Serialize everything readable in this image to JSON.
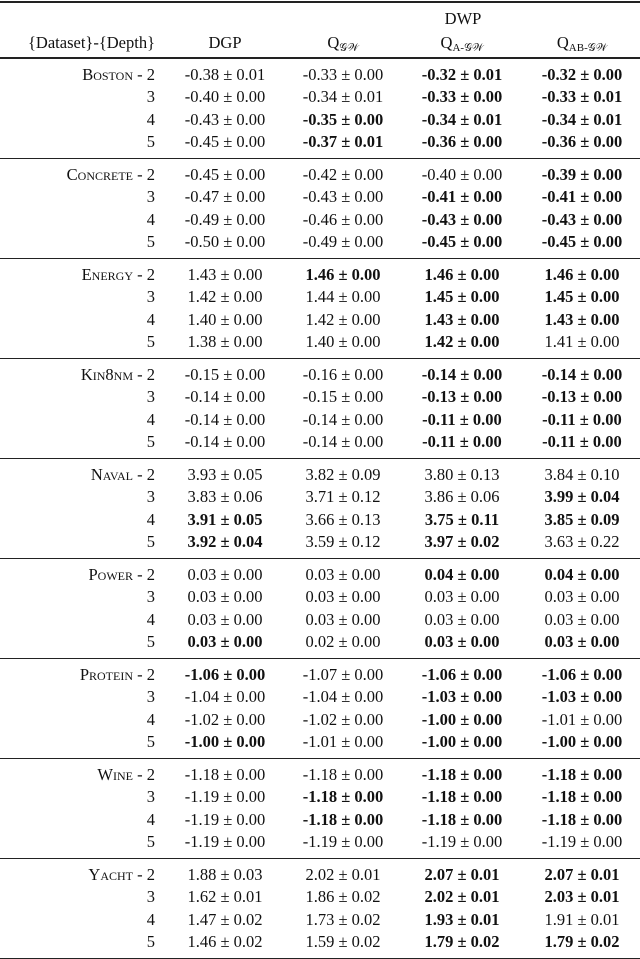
{
  "header": {
    "group_label": "DWP",
    "columns": [
      {
        "label": "{Dataset}-{Depth}"
      },
      {
        "label": "DGP"
      },
      {
        "label": "Q",
        "sub": "𝒢𝒲"
      },
      {
        "label": "Q",
        "sub": "A-𝒢𝒲"
      },
      {
        "label": "Q",
        "sub": "AB-𝒢𝒲"
      }
    ]
  },
  "separator": " - ",
  "groups": [
    {
      "name": "Boston",
      "rows": [
        {
          "depth": "2",
          "cells": [
            "-0.38 ± 0.01",
            "-0.33 ± 0.00",
            "-0.32 ± 0.01",
            "-0.32 ± 0.00"
          ],
          "bold": [
            0,
            0,
            1,
            1
          ]
        },
        {
          "depth": "3",
          "cells": [
            "-0.40 ± 0.00",
            "-0.34 ± 0.01",
            "-0.33 ± 0.00",
            "-0.33 ± 0.01"
          ],
          "bold": [
            0,
            0,
            1,
            1
          ]
        },
        {
          "depth": "4",
          "cells": [
            "-0.43 ± 0.00",
            "-0.35 ± 0.00",
            "-0.34 ± 0.01",
            "-0.34 ± 0.01"
          ],
          "bold": [
            0,
            1,
            1,
            1
          ]
        },
        {
          "depth": "5",
          "cells": [
            "-0.45 ± 0.00",
            "-0.37 ± 0.01",
            "-0.36 ± 0.00",
            "-0.36 ± 0.00"
          ],
          "bold": [
            0,
            1,
            1,
            1
          ]
        }
      ]
    },
    {
      "name": "Concrete",
      "rows": [
        {
          "depth": "2",
          "cells": [
            "-0.45 ± 0.00",
            "-0.42 ± 0.00",
            "-0.40 ± 0.00",
            "-0.39 ± 0.00"
          ],
          "bold": [
            0,
            0,
            0,
            1
          ]
        },
        {
          "depth": "3",
          "cells": [
            "-0.47 ± 0.00",
            "-0.43 ± 0.00",
            "-0.41 ± 0.00",
            "-0.41 ± 0.00"
          ],
          "bold": [
            0,
            0,
            1,
            1
          ]
        },
        {
          "depth": "4",
          "cells": [
            "-0.49 ± 0.00",
            "-0.46 ± 0.00",
            "-0.43 ± 0.00",
            "-0.43 ± 0.00"
          ],
          "bold": [
            0,
            0,
            1,
            1
          ]
        },
        {
          "depth": "5",
          "cells": [
            "-0.50 ± 0.00",
            "-0.49 ± 0.00",
            "-0.45 ± 0.00",
            "-0.45 ± 0.00"
          ],
          "bold": [
            0,
            0,
            1,
            1
          ]
        }
      ]
    },
    {
      "name": "Energy",
      "rows": [
        {
          "depth": "2",
          "cells": [
            "1.43 ± 0.00",
            "1.46 ± 0.00",
            "1.46 ± 0.00",
            "1.46 ± 0.00"
          ],
          "bold": [
            0,
            1,
            1,
            1
          ]
        },
        {
          "depth": "3",
          "cells": [
            "1.42 ± 0.00",
            "1.44 ± 0.00",
            "1.45 ± 0.00",
            "1.45 ± 0.00"
          ],
          "bold": [
            0,
            0,
            1,
            1
          ]
        },
        {
          "depth": "4",
          "cells": [
            "1.40 ± 0.00",
            "1.42 ± 0.00",
            "1.43 ± 0.00",
            "1.43 ± 0.00"
          ],
          "bold": [
            0,
            0,
            1,
            1
          ]
        },
        {
          "depth": "5",
          "cells": [
            "1.38 ± 0.00",
            "1.40 ± 0.00",
            "1.42 ± 0.00",
            "1.41 ± 0.00"
          ],
          "bold": [
            0,
            0,
            1,
            0
          ]
        }
      ]
    },
    {
      "name": "Kin8nm",
      "rows": [
        {
          "depth": "2",
          "cells": [
            "-0.15 ± 0.00",
            "-0.16 ± 0.00",
            "-0.14 ± 0.00",
            "-0.14 ± 0.00"
          ],
          "bold": [
            0,
            0,
            1,
            1
          ]
        },
        {
          "depth": "3",
          "cells": [
            "-0.14 ± 0.00",
            "-0.15 ± 0.00",
            "-0.13 ± 0.00",
            "-0.13 ± 0.00"
          ],
          "bold": [
            0,
            0,
            1,
            1
          ]
        },
        {
          "depth": "4",
          "cells": [
            "-0.14 ± 0.00",
            "-0.14 ± 0.00",
            "-0.11 ± 0.00",
            "-0.11 ± 0.00"
          ],
          "bold": [
            0,
            0,
            1,
            1
          ]
        },
        {
          "depth": "5",
          "cells": [
            "-0.14 ± 0.00",
            "-0.14 ± 0.00",
            "-0.11 ± 0.00",
            "-0.11 ± 0.00"
          ],
          "bold": [
            0,
            0,
            1,
            1
          ]
        }
      ]
    },
    {
      "name": "Naval",
      "rows": [
        {
          "depth": "2",
          "cells": [
            "3.93 ± 0.05",
            "3.82 ± 0.09",
            "3.80 ± 0.13",
            "3.84 ± 0.10"
          ],
          "bold": [
            0,
            0,
            0,
            0
          ]
        },
        {
          "depth": "3",
          "cells": [
            "3.83 ± 0.06",
            "3.71 ± 0.12",
            "3.86 ± 0.06",
            "3.99 ± 0.04"
          ],
          "bold": [
            0,
            0,
            0,
            1
          ]
        },
        {
          "depth": "4",
          "cells": [
            "3.91 ± 0.05",
            "3.66 ± 0.13",
            "3.75 ± 0.11",
            "3.85 ± 0.09"
          ],
          "bold": [
            1,
            0,
            1,
            1
          ]
        },
        {
          "depth": "5",
          "cells": [
            "3.92 ± 0.04",
            "3.59 ± 0.12",
            "3.97 ± 0.02",
            "3.63 ± 0.22"
          ],
          "bold": [
            1,
            0,
            1,
            0
          ]
        }
      ]
    },
    {
      "name": "Power",
      "rows": [
        {
          "depth": "2",
          "cells": [
            "0.03 ± 0.00",
            "0.03 ± 0.00",
            "0.04 ± 0.00",
            "0.04 ± 0.00"
          ],
          "bold": [
            0,
            0,
            1,
            1
          ]
        },
        {
          "depth": "3",
          "cells": [
            "0.03 ± 0.00",
            "0.03 ± 0.00",
            "0.03 ± 0.00",
            "0.03 ± 0.00"
          ],
          "bold": [
            0,
            0,
            0,
            0
          ]
        },
        {
          "depth": "4",
          "cells": [
            "0.03 ± 0.00",
            "0.03 ± 0.00",
            "0.03 ± 0.00",
            "0.03 ± 0.00"
          ],
          "bold": [
            0,
            0,
            0,
            0
          ]
        },
        {
          "depth": "5",
          "cells": [
            "0.03 ± 0.00",
            "0.02 ± 0.00",
            "0.03 ± 0.00",
            "0.03 ± 0.00"
          ],
          "bold": [
            1,
            0,
            1,
            1
          ]
        }
      ]
    },
    {
      "name": "Protein",
      "rows": [
        {
          "depth": "2",
          "cells": [
            "-1.06 ± 0.00",
            "-1.07 ± 0.00",
            "-1.06 ± 0.00",
            "-1.06 ± 0.00"
          ],
          "bold": [
            1,
            0,
            1,
            1
          ]
        },
        {
          "depth": "3",
          "cells": [
            "-1.04 ± 0.00",
            "-1.04 ± 0.00",
            "-1.03 ± 0.00",
            "-1.03 ± 0.00"
          ],
          "bold": [
            0,
            0,
            1,
            1
          ]
        },
        {
          "depth": "4",
          "cells": [
            "-1.02 ± 0.00",
            "-1.02 ± 0.00",
            "-1.00 ± 0.00",
            "-1.01 ± 0.00"
          ],
          "bold": [
            0,
            0,
            1,
            0
          ]
        },
        {
          "depth": "5",
          "cells": [
            "-1.00 ± 0.00",
            "-1.01 ± 0.00",
            "-1.00 ± 0.00",
            "-1.00 ± 0.00"
          ],
          "bold": [
            1,
            0,
            1,
            1
          ]
        }
      ]
    },
    {
      "name": "Wine",
      "rows": [
        {
          "depth": "2",
          "cells": [
            "-1.18 ± 0.00",
            "-1.18 ± 0.00",
            "-1.18 ± 0.00",
            "-1.18 ± 0.00"
          ],
          "bold": [
            0,
            0,
            1,
            1
          ]
        },
        {
          "depth": "3",
          "cells": [
            "-1.19 ± 0.00",
            "-1.18 ± 0.00",
            "-1.18 ± 0.00",
            "-1.18 ± 0.00"
          ],
          "bold": [
            0,
            1,
            1,
            1
          ]
        },
        {
          "depth": "4",
          "cells": [
            "-1.19 ± 0.00",
            "-1.18 ± 0.00",
            "-1.18 ± 0.00",
            "-1.18 ± 0.00"
          ],
          "bold": [
            0,
            1,
            1,
            1
          ]
        },
        {
          "depth": "5",
          "cells": [
            "-1.19 ± 0.00",
            "-1.19 ± 0.00",
            "-1.19 ± 0.00",
            "-1.19 ± 0.00"
          ],
          "bold": [
            0,
            0,
            0,
            0
          ]
        }
      ]
    },
    {
      "name": "Yacht",
      "rows": [
        {
          "depth": "2",
          "cells": [
            "1.88 ± 0.03",
            "2.02 ± 0.01",
            "2.07 ± 0.01",
            "2.07 ± 0.01"
          ],
          "bold": [
            0,
            0,
            1,
            1
          ]
        },
        {
          "depth": "3",
          "cells": [
            "1.62 ± 0.01",
            "1.86 ± 0.02",
            "2.02 ± 0.01",
            "2.03 ± 0.01"
          ],
          "bold": [
            0,
            0,
            1,
            1
          ]
        },
        {
          "depth": "4",
          "cells": [
            "1.47 ± 0.02",
            "1.73 ± 0.02",
            "1.93 ± 0.01",
            "1.91 ± 0.01"
          ],
          "bold": [
            0,
            0,
            1,
            0
          ]
        },
        {
          "depth": "5",
          "cells": [
            "1.46 ± 0.02",
            "1.59 ± 0.02",
            "1.79 ± 0.02",
            "1.79 ± 0.02"
          ],
          "bold": [
            0,
            0,
            1,
            1
          ]
        }
      ]
    }
  ]
}
